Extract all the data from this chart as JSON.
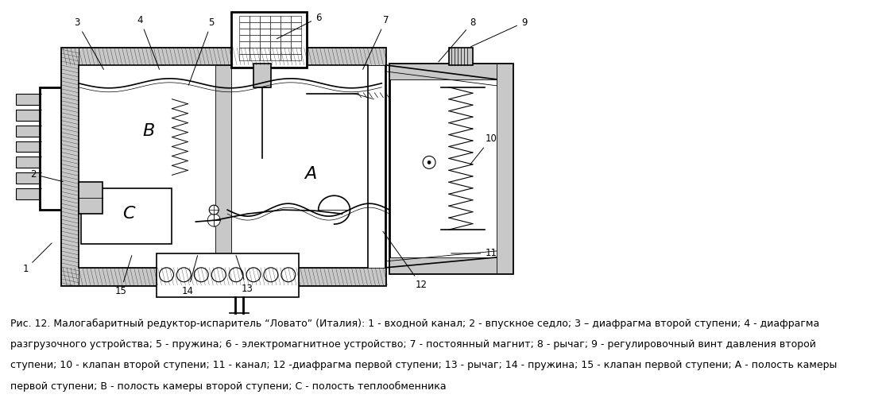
{
  "background_color": "#ffffff",
  "figure_width": 11.15,
  "figure_height": 5.11,
  "dpi": 100,
  "caption_lines": [
    "Рис. 12. Малогабаритный редуктор-испаритель “Ловато” (Италия): 1 - входной канал; 2 - впускное седло; 3 – диафрагма второй ступени; 4 - диафрагма",
    "разгрузочного устройства; 5 - пружина; 6 - электромагнитное устройство; 7 - постоянный магнит; 8 - рычаг; 9 - регулировочный винт давления второй",
    "ступени; 10 - клапан второй ступени; 11 - канал; 12 -диафрагма первой ступени; 13 - рычаг; 14 - пружина; 15 - клапан первой ступени; А - полость камеры",
    "первой ступени; В - полость камеры второй ступени; С - полость теплообменника"
  ],
  "caption_fontsize": 9.0,
  "text_color": "#000000",
  "line_color": "#000000",
  "hatch_color": "#000000",
  "gray_fill": "#c8c8c8",
  "white_fill": "#ffffff",
  "light_gray": "#e8e8e8"
}
